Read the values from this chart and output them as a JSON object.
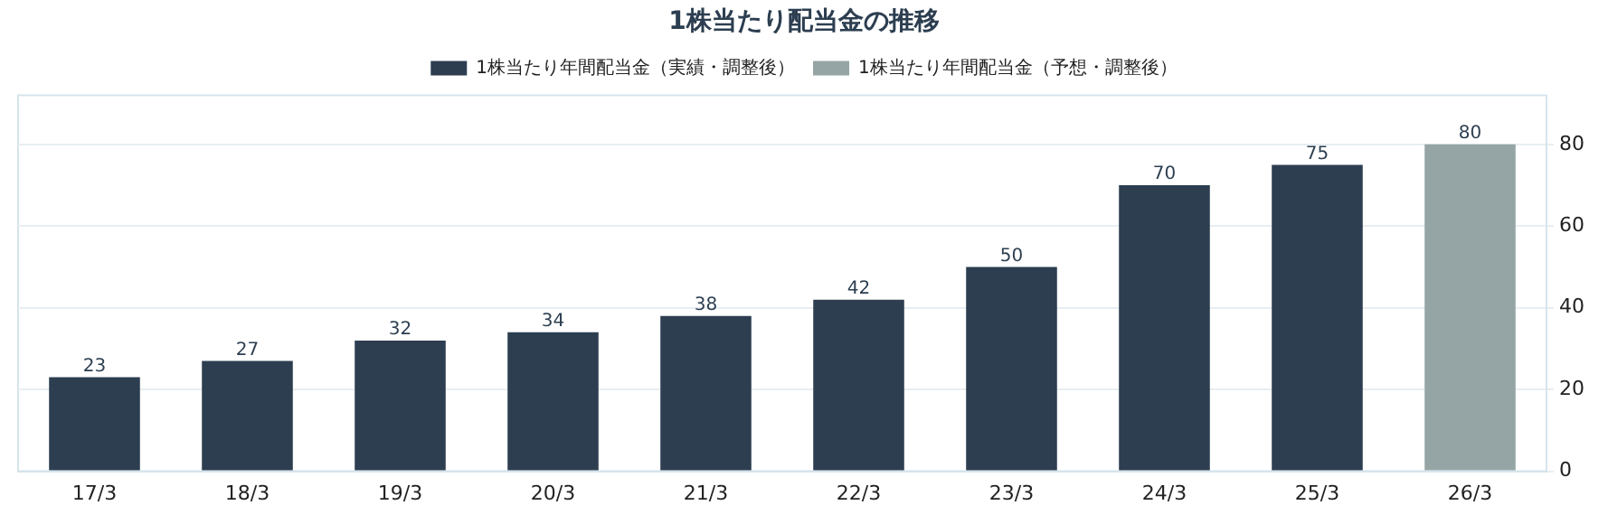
{
  "chart_data": {
    "type": "bar",
    "title": "1株当たり配当金の推移",
    "categories": [
      "17/3",
      "18/3",
      "19/3",
      "20/3",
      "21/3",
      "22/3",
      "23/3",
      "24/3",
      "25/3",
      "26/3"
    ],
    "series": [
      {
        "name": "1株当たり年間配当金（実績・調整後）",
        "color": "#2c3e50",
        "values": [
          23,
          27,
          32,
          34,
          38,
          42,
          50,
          70,
          75,
          null
        ]
      },
      {
        "name": "1株当たり年間配当金（予想・調整後）",
        "color": "#95a5a6",
        "values": [
          null,
          null,
          null,
          null,
          null,
          null,
          null,
          null,
          null,
          80
        ]
      }
    ],
    "ylim": [
      0,
      92
    ],
    "yticks": [
      0,
      20,
      40,
      60,
      80
    ],
    "grid": "y",
    "legend": "top",
    "data_labels": true
  }
}
